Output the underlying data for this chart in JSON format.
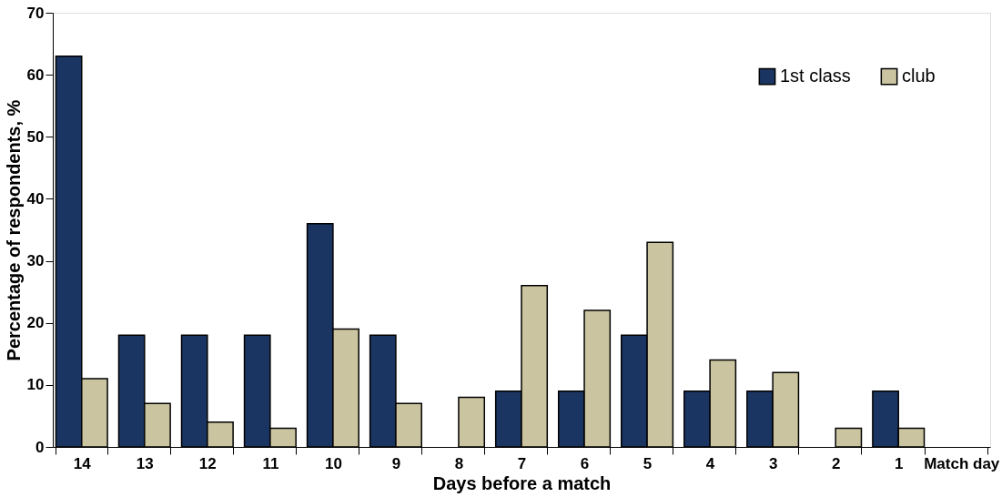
{
  "chart_data": {
    "type": "bar",
    "xlabel": "Days before a match",
    "ylabel": "Percentage of respondents, %",
    "categories": [
      "14",
      "13",
      "12",
      "11",
      "10",
      "9",
      "8",
      "7",
      "6",
      "5",
      "4",
      "3",
      "2",
      "1",
      "Match day"
    ],
    "series": [
      {
        "name": "1st class",
        "color": "#1b3563",
        "values": [
          63,
          18,
          18,
          18,
          36,
          18,
          null,
          9,
          9,
          18,
          9,
          9,
          null,
          9,
          null
        ]
      },
      {
        "name": "club",
        "color": "#cbc4a0",
        "values": [
          11,
          7,
          4,
          3,
          19,
          7,
          8,
          26,
          22,
          33,
          14,
          12,
          3,
          3,
          null
        ]
      }
    ],
    "ylim": [
      0,
      70
    ],
    "yticks": [
      0,
      10,
      20,
      30,
      40,
      50,
      60,
      70
    ],
    "grid": false,
    "legend": "top right"
  }
}
